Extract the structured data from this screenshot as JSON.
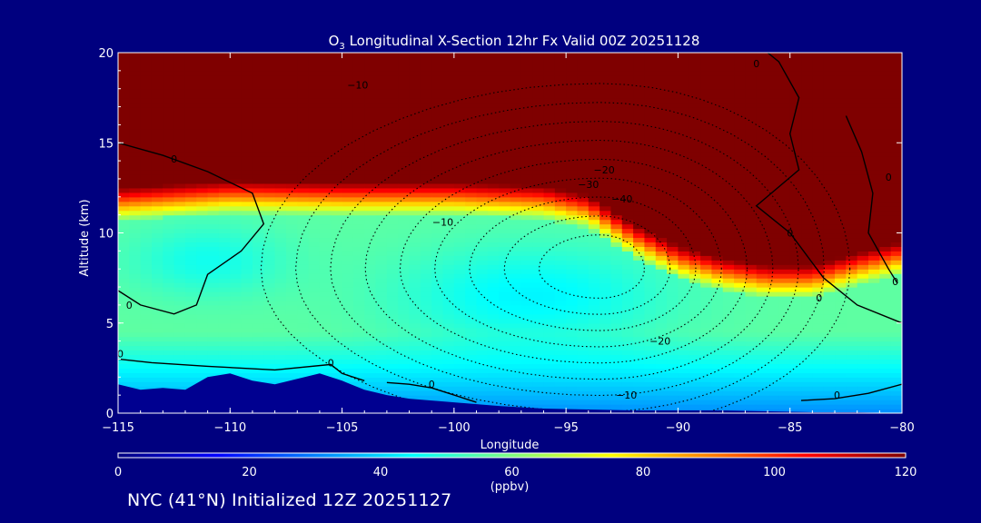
{
  "chart_data": {
    "type": "heatmap",
    "title_prefix": "O",
    "title_sub": "3",
    "title_rest": " Longitudinal X-Section 12hr  Fx Valid 00Z 20251128",
    "xlabel": "Longitude",
    "ylabel": "Altitude (km)",
    "xlim": [
      -115,
      -80
    ],
    "ylim": [
      0,
      20
    ],
    "x_ticks": [
      -115,
      -110,
      -105,
      -100,
      -95,
      -90,
      -85,
      -80
    ],
    "x_tick_labels": [
      "−115",
      "−110",
      "−105",
      "−100",
      "−95",
      "−90",
      "−85",
      "−80"
    ],
    "y_ticks": [
      0,
      5,
      10,
      15,
      20
    ],
    "y_tick_labels": [
      "0",
      "5",
      "10",
      "15",
      "20"
    ],
    "colorbar": {
      "min": 0,
      "max": 120,
      "ticks": [
        0,
        20,
        40,
        60,
        80,
        100,
        120
      ],
      "tick_labels": [
        "0",
        "20",
        "40",
        "60",
        "80",
        "100",
        "120"
      ],
      "units": "(ppbv)",
      "colors": [
        "#00007f",
        "#0000ff",
        "#0080ff",
        "#00ffff",
        "#80ff80",
        "#ffff00",
        "#ff8000",
        "#ff0000",
        "#7f0000"
      ]
    },
    "tropopause_height_km": [
      [
        -115,
        12.2
      ],
      [
        -110,
        12.6
      ],
      [
        -105,
        12.5
      ],
      [
        -100,
        12.5
      ],
      [
        -96,
        12.3
      ],
      [
        -94,
        11.8
      ],
      [
        -92,
        10.2
      ],
      [
        -90,
        9.0
      ],
      [
        -88,
        8.3
      ],
      [
        -86,
        7.9
      ],
      [
        -84,
        7.9
      ],
      [
        -82,
        8.6
      ],
      [
        -80,
        9.2
      ]
    ],
    "mid_ozone_min": {
      "lon": -96.5,
      "alt_km": 6.5,
      "value_ppbv": 45
    },
    "mid_ozone_min2": {
      "lon": -111,
      "alt_km": 8.5,
      "value_ppbv": 48
    },
    "terrain_km": [
      [
        -115,
        1.6
      ],
      [
        -114,
        1.3
      ],
      [
        -113,
        1.4
      ],
      [
        -112,
        1.3
      ],
      [
        -111,
        2.0
      ],
      [
        -110,
        2.2
      ],
      [
        -109,
        1.8
      ],
      [
        -108,
        1.6
      ],
      [
        -107,
        1.9
      ],
      [
        -106,
        2.2
      ],
      [
        -105,
        1.8
      ],
      [
        -104,
        1.3
      ],
      [
        -103,
        1.0
      ],
      [
        -102,
        0.8
      ],
      [
        -100,
        0.6
      ],
      [
        -98,
        0.4
      ],
      [
        -96,
        0.25
      ],
      [
        -94,
        0.2
      ],
      [
        -92,
        0.15
      ],
      [
        -90,
        0.15
      ],
      [
        -88,
        0.15
      ],
      [
        -86,
        0.1
      ],
      [
        -84,
        0.05
      ],
      [
        -82,
        0.05
      ],
      [
        -80,
        0.0
      ]
    ],
    "contour_labels": [
      {
        "text": "−10",
        "lon": -104.3,
        "alt_km": 18.2
      },
      {
        "text": "−10",
        "lon": -100.5,
        "alt_km": 10.6
      },
      {
        "text": "−20",
        "lon": -93.3,
        "alt_km": 13.5
      },
      {
        "text": "−30",
        "lon": -94.0,
        "alt_km": 12.7
      },
      {
        "text": "−40",
        "lon": -92.5,
        "alt_km": 11.9
      },
      {
        "text": "−20",
        "lon": -90.8,
        "alt_km": 4.0
      },
      {
        "text": "−10",
        "lon": -92.3,
        "alt_km": 1.0
      },
      {
        "text": "0",
        "lon": -112.5,
        "alt_km": 14.1
      },
      {
        "text": "0",
        "lon": -114.5,
        "alt_km": 6.0
      },
      {
        "text": "0",
        "lon": -114.9,
        "alt_km": 3.3
      },
      {
        "text": "0",
        "lon": -105.5,
        "alt_km": 2.8
      },
      {
        "text": "0",
        "lon": -101.0,
        "alt_km": 1.6
      },
      {
        "text": "0",
        "lon": -83.7,
        "alt_km": 6.4
      },
      {
        "text": "0",
        "lon": -82.9,
        "alt_km": 1.0
      },
      {
        "text": "0",
        "lon": -80.3,
        "alt_km": 7.3
      },
      {
        "text": "0",
        "lon": -80.6,
        "alt_km": 13.1
      },
      {
        "text": "0",
        "lon": -86.5,
        "alt_km": 19.4
      },
      {
        "text": "0",
        "lon": -85.0,
        "alt_km": 10.0
      }
    ]
  },
  "footer": {
    "text": "NYC (41°N) Initialized 12Z 20251127"
  }
}
